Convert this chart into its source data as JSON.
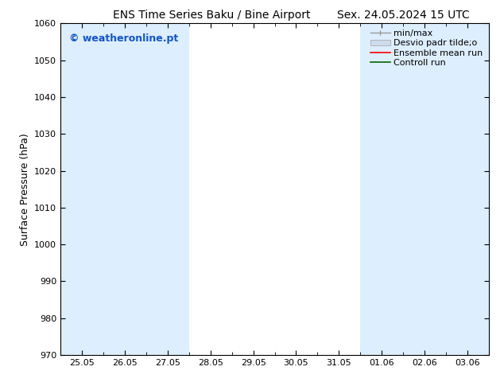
{
  "title_left": "ENS Time Series Baku / Bine Airport",
  "title_right": "Sex. 24.05.2024 15 UTC",
  "ylabel": "Surface Pressure (hPa)",
  "ylim": [
    970,
    1060
  ],
  "yticks": [
    970,
    980,
    990,
    1000,
    1010,
    1020,
    1030,
    1040,
    1050,
    1060
  ],
  "xtick_labels": [
    "25.05",
    "26.05",
    "27.05",
    "28.05",
    "29.05",
    "30.05",
    "31.05",
    "01.06",
    "02.06",
    "03.06"
  ],
  "watermark": "© weatheronline.pt",
  "shaded_indices": [
    0,
    1,
    2,
    7,
    8,
    9
  ],
  "band_color": "#ddeeff",
  "background_color": "#ffffff",
  "legend_labels": [
    "min/max",
    "Desvio padr tilde;o",
    "Ensemble mean run",
    "Controll run"
  ],
  "legend_colors": [
    "#999999",
    "#ccddee",
    "red",
    "green"
  ],
  "title_fontsize": 10,
  "tick_fontsize": 8,
  "ylabel_fontsize": 9,
  "watermark_fontsize": 9,
  "watermark_color": "#1155cc",
  "legend_fontsize": 8
}
